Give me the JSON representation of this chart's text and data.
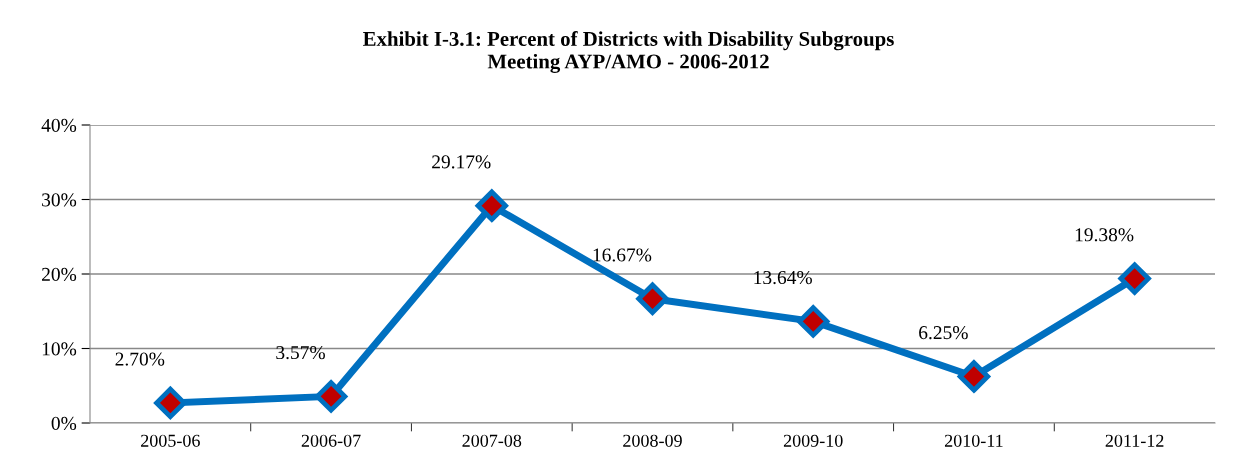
{
  "chart_data": {
    "type": "line",
    "title": "Exhibit I-3.1: Percent of Districts with Disability Subgroups\nMeeting AYP/AMO - 2006-2012",
    "categories": [
      "2005-06",
      "2006-07",
      "2007-08",
      "2008-09",
      "2009-10",
      "2010-11",
      "2011-12"
    ],
    "series": [
      {
        "color": "#0070c0",
        "colors": [
          "#c00000",
          "#c00000",
          "#c00000",
          "#c00000",
          "#c00000",
          "#c00000",
          "#c00000"
        ],
        "values": [
          2.7,
          3.57,
          29.17,
          16.67,
          13.64,
          6.25,
          19.38
        ],
        "value_labels": [
          "2.70%",
          "3.57%",
          "29.17%",
          "16.67%",
          "13.64%",
          "6.25%",
          "19.38%"
        ]
      }
    ],
    "ylim": [
      0,
      40
    ],
    "yticks": [
      {
        "value": 0,
        "label": "0%"
      },
      {
        "value": 10,
        "label": "10%"
      },
      {
        "value": 20,
        "label": "20%"
      },
      {
        "value": 30,
        "label": "30%"
      },
      {
        "value": 40,
        "label": "40%"
      }
    ],
    "grid": "y",
    "marker": "diamond",
    "line_style": "solid"
  }
}
